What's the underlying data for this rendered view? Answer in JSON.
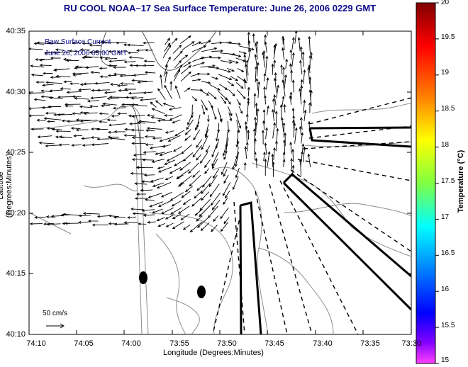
{
  "title": "RU COOL   NOAA–17  Sea Surface Temperature:  June 26, 2006 0229 GMT",
  "legend": {
    "line1": "Raw Surface Current",
    "line2": "June 26, 2006 03:00 GMT"
  },
  "scale_label": "50 cm/s",
  "axes": {
    "xlabel": "Longitude (Degrees:Minutes)",
    "ylabel": "Latitude (Degrees:Minutes)",
    "xticks": [
      "74:10",
      "74:05",
      "74:00",
      "73:55",
      "73:50",
      "73:45",
      "73:40",
      "73:35",
      "73:30"
    ],
    "yticks": [
      "40:35",
      "40:30",
      "40:25",
      "40:20",
      "40:15",
      "40:10"
    ]
  },
  "colorbar": {
    "label": "Temperature (°C)",
    "ticks": [
      "20",
      "19.5",
      "19",
      "18.5",
      "18",
      "17.5",
      "17",
      "16.5",
      "16",
      "15.5",
      "15"
    ]
  },
  "colors": {
    "title": "#0b0b8a",
    "vectors": "#000000",
    "bathymetry": "#8c8c8c"
  }
}
